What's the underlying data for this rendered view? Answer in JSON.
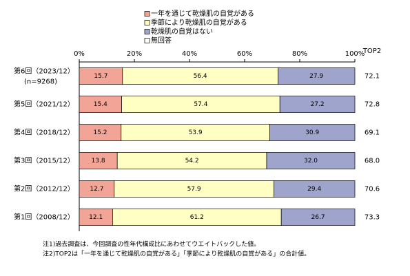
{
  "chart_data": {
    "type": "stacked-bar",
    "categories": [
      "第6回（2023/12）",
      "第5回（2021/12）",
      "第4回（2018/12）",
      "第3回（2015/12）",
      "第2回（2012/12）",
      "第1回（2008/12）"
    ],
    "category_sublabels": [
      "(n=9268)",
      null,
      null,
      null,
      null,
      null
    ],
    "series": [
      {
        "name": "一年を通じて乾燥肌の自覚がある",
        "color": "#f2a596",
        "values": [
          15.7,
          15.4,
          15.2,
          13.8,
          12.7,
          12.1
        ]
      },
      {
        "name": "季節により乾燥肌の自覚がある",
        "color": "#ffffc4",
        "values": [
          56.4,
          57.4,
          53.9,
          54.2,
          57.9,
          61.2
        ]
      },
      {
        "name": "乾燥肌の自覚はない",
        "color": "#9ea4cc",
        "values": [
          27.9,
          27.2,
          30.9,
          32.0,
          29.4,
          26.7
        ],
        "value_labels": [
          "27.9",
          "27.2",
          "30.9",
          "32.0",
          "29.4",
          "26.7"
        ]
      },
      {
        "name": "無回答",
        "color": "#ffffff",
        "values": [
          0,
          0,
          0,
          0,
          0,
          0
        ]
      }
    ],
    "xlim": [
      0,
      100
    ],
    "xticks": [
      {
        "value": 0,
        "label": "0%"
      },
      {
        "value": 20,
        "label": "20%"
      },
      {
        "value": 40,
        "label": "40%"
      },
      {
        "value": 60,
        "label": "60%"
      },
      {
        "value": 80,
        "label": "80%"
      },
      {
        "value": 100,
        "label": "100%"
      }
    ],
    "top2": {
      "title": "TOP2",
      "values": [
        72.1,
        72.8,
        69.1,
        68.0,
        70.6,
        73.3
      ],
      "value_labels": [
        "72.1",
        "72.8",
        "69.1",
        "68.0",
        "70.6",
        "73.3"
      ]
    },
    "notes": [
      "注1)過去調査は、今回調査の性年代構成比にあわせてウエイトバックした値。",
      "注2)TOP2は「一年を通じて乾燥肌の自覚がある」「季節により乾燥肌の自覚がある」の合計値。"
    ]
  }
}
